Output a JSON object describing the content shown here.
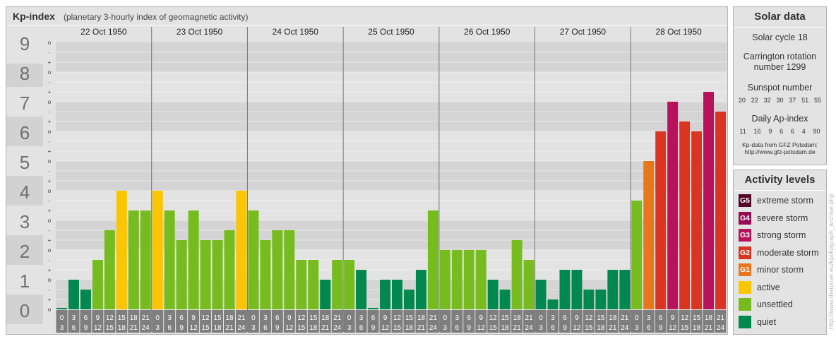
{
  "header": {
    "title": "Kp-index",
    "subtitle": "(planetary 3-hourly index of geomagnetic activity)"
  },
  "colors": {
    "quiet": "#00884e",
    "unsettled": "#77bc1e",
    "active": "#fbc500",
    "G1": "#e7761c",
    "G2": "#da3520",
    "G3": "#b8125d",
    "G4": "#950b55",
    "G5": "#54052a",
    "band_dark": "#d4d4d4",
    "band_light": "#e3e3e3",
    "tick_box": "#7e7e7e"
  },
  "chart_data": {
    "type": "bar",
    "ylim": [
      0,
      9
    ],
    "y_ticks": [
      "0",
      "1",
      "2",
      "3",
      "4",
      "5",
      "6",
      "7",
      "8",
      "9"
    ],
    "minor_tick_labels": [
      "o",
      "+",
      "-"
    ],
    "hour_starts": [
      "0",
      "3",
      "6",
      "9",
      "12",
      "15",
      "18",
      "21"
    ],
    "hour_ends": [
      "3",
      "6",
      "9",
      "12",
      "15",
      "18",
      "21",
      "24"
    ],
    "days": [
      {
        "date": "22 Oct 1950",
        "values": [
          0,
          1,
          0.667,
          1.667,
          2.667,
          4,
          3.333,
          3.333
        ]
      },
      {
        "date": "23 Oct 1950",
        "values": [
          4,
          3.333,
          2.333,
          3.333,
          2.333,
          2.333,
          2.667,
          4
        ]
      },
      {
        "date": "24 Oct 1950",
        "values": [
          3.333,
          2.333,
          2.667,
          2.667,
          1.667,
          1.667,
          1,
          1.667
        ]
      },
      {
        "date": "25 Oct 1950",
        "values": [
          1.667,
          1.333,
          0,
          1,
          1,
          0.667,
          1.333,
          3.333
        ]
      },
      {
        "date": "26 Oct 1950",
        "values": [
          2,
          2,
          2,
          2,
          1,
          0.667,
          2.333,
          1.667
        ]
      },
      {
        "date": "27 Oct 1950",
        "values": [
          1,
          0.333,
          1.333,
          1.333,
          0.667,
          0.667,
          1.333,
          1.333
        ]
      },
      {
        "date": "28 Oct 1950",
        "values": [
          3.667,
          5,
          6,
          7,
          6.333,
          6,
          7.333,
          6.667
        ]
      }
    ]
  },
  "solar_data": {
    "title": "Solar data",
    "solar_cycle": "Solar cycle 18",
    "carrington_line1": "Carrington rotation",
    "carrington_line2": "number 1299",
    "sunspot_title": "Sunspot number",
    "sunspot_values": [
      "20",
      "22",
      "32",
      "30",
      "37",
      "51",
      "55"
    ],
    "ap_title": "Daily Ap-index",
    "ap_values": [
      "11",
      "16",
      "9",
      "6",
      "6",
      "4",
      "90"
    ],
    "credit_line1": "Kp-data from GFZ Potsdam:",
    "credit_line2": "http://www.gfz-potsdam.de"
  },
  "activity_levels": {
    "title": "Activity levels",
    "items": [
      {
        "code": "G5",
        "label": "extreme storm",
        "color": "#54052a"
      },
      {
        "code": "G4",
        "label": "severe storm",
        "color": "#950b55"
      },
      {
        "code": "G3",
        "label": "strong storm",
        "color": "#b8125d"
      },
      {
        "code": "G2",
        "label": "moderate storm",
        "color": "#da3520"
      },
      {
        "code": "G1",
        "label": "minor storm",
        "color": "#e7761c"
      },
      {
        "code": "",
        "label": "active",
        "color": "#fbc500"
      },
      {
        "code": "",
        "label": "unsettled",
        "color": "#77bc1e"
      },
      {
        "code": "",
        "label": "quiet",
        "color": "#00884e"
      }
    ]
  },
  "watermark": "http://www.theusner.eu/kpi/kpgraph_archive.php"
}
